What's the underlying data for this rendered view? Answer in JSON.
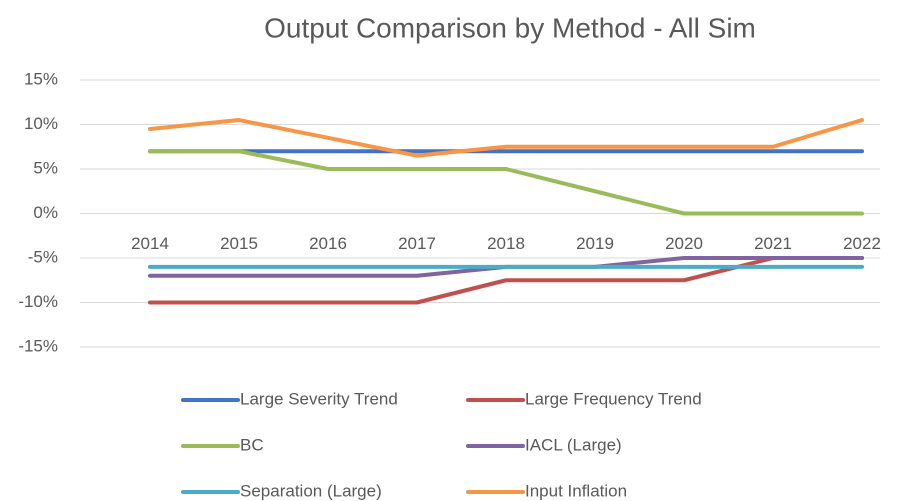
{
  "chart_data": {
    "type": "line",
    "title": "Output Comparison by Method - All Sim",
    "categories": [
      "2014",
      "2015",
      "2016",
      "2017",
      "2018",
      "2019",
      "2020",
      "2021",
      "2022"
    ],
    "series": [
      {
        "name": "Large Severity Trend",
        "color": "#4472c4",
        "values": [
          7,
          7,
          7,
          7,
          7,
          7,
          7,
          7,
          7
        ]
      },
      {
        "name": "Large Frequency Trend",
        "color": "#c0504d",
        "values": [
          -10,
          -10,
          -10,
          -10,
          -7.5,
          -7.5,
          -7.5,
          -5,
          -5
        ]
      },
      {
        "name": "BC",
        "color": "#9bbb59",
        "values": [
          7,
          7,
          5,
          5,
          5,
          2.5,
          0,
          0,
          0
        ]
      },
      {
        "name": "IACL (Large)",
        "color": "#8064a2",
        "values": [
          -7,
          -7,
          -7,
          -7,
          -6,
          -6,
          -5,
          -5,
          -5
        ]
      },
      {
        "name": "Separation (Large)",
        "color": "#4bacc6",
        "values": [
          -6,
          -6,
          -6,
          -6,
          -6,
          -6,
          -6,
          -6,
          -6
        ]
      },
      {
        "name": "Input Inflation",
        "color": "#f79646",
        "values": [
          9.5,
          10.5,
          8.5,
          6.5,
          7.5,
          7.5,
          7.5,
          7.5,
          10.5
        ]
      }
    ],
    "ylim": [
      -15,
      15
    ],
    "yticks": [
      {
        "value": -15,
        "label": "-15%"
      },
      {
        "value": -10,
        "label": "-10%"
      },
      {
        "value": -5,
        "label": "-5%"
      },
      {
        "value": 0,
        "label": "0%"
      },
      {
        "value": 5,
        "label": "5%"
      },
      {
        "value": 10,
        "label": "10%"
      },
      {
        "value": 15,
        "label": "15%"
      }
    ],
    "grid": true
  }
}
